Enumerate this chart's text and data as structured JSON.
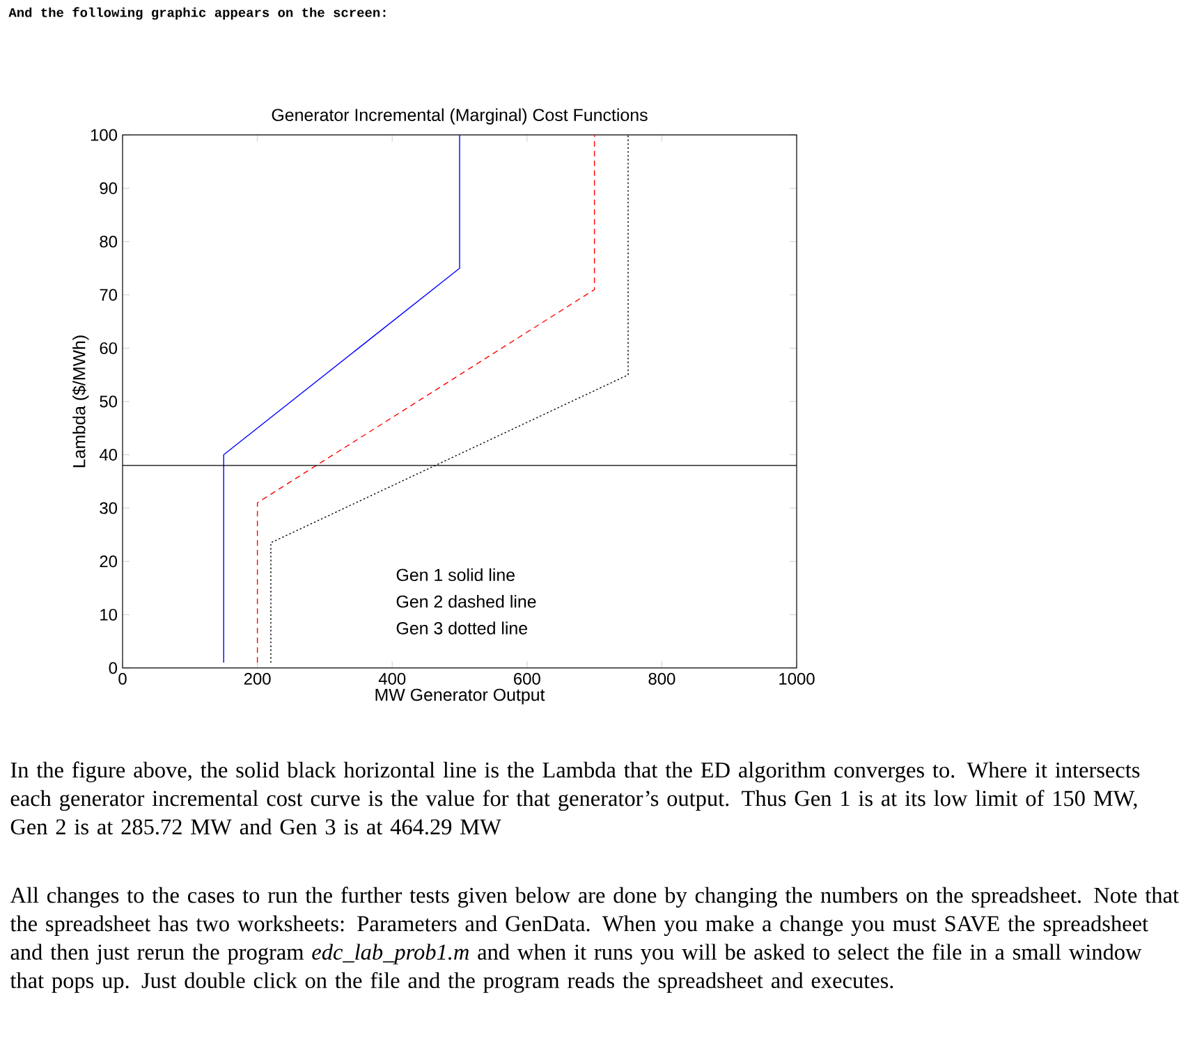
{
  "chart_data": {
    "type": "line",
    "title": "Generator Incremental (Marginal) Cost Functions",
    "xlabel": "MW Generator Output",
    "ylabel": "Lambda ($/MWh)",
    "series": [
      {
        "color": "#0000ff",
        "line_style": "solid",
        "x": [
          150,
          150,
          500,
          500
        ],
        "values": [
          1,
          40,
          75,
          100
        ]
      },
      {
        "color": "#ff0000",
        "line_style": "dashed",
        "x": [
          200,
          200,
          700,
          700
        ],
        "values": [
          1,
          31,
          71,
          100
        ]
      },
      {
        "color": "#000000",
        "line_style": "dotted",
        "x": [
          220,
          220,
          750,
          750
        ],
        "values": [
          1,
          23.5,
          55,
          100
        ]
      }
    ],
    "ref_lines": [
      {
        "axis": "y",
        "value": 38,
        "color": "#000000"
      }
    ],
    "xlim": [
      0,
      1000
    ],
    "ylim": [
      0,
      100
    ],
    "xticks": [
      0,
      200,
      400,
      600,
      800,
      1000
    ],
    "yticks": [
      0,
      10,
      20,
      30,
      40,
      50,
      60,
      70,
      80,
      90,
      100
    ],
    "annotations": [
      "And the following graphic appears on the screen:",
      "In the figure above, the solid black horizontal line is the Lambda that the ED algorithm converges to. Where it intersects each generator incremental cost curve is the value for that generator’s output. Thus Gen 1 is at its low limit of 150 MW, Gen 2 is at 285.72 MW and Gen 3 is at 464.29 MW",
      "All changes to the cases to run the further tests given below are done by changing the numbers on the spreadsheet. Note that the spreadsheet has two worksheets: Parameters and GenData. When you make a change you must SAVE the spreadsheet and then just rerun the program *edc_lab_prob1.m* and when it runs you will be asked to select the file in a small window that pops up. Just double click on the file and the program reads the spreadsheet and executes.",
      "Gen 1 solid line",
      "Gen 2 dashed line",
      "Gen 3 dotted line"
    ]
  }
}
